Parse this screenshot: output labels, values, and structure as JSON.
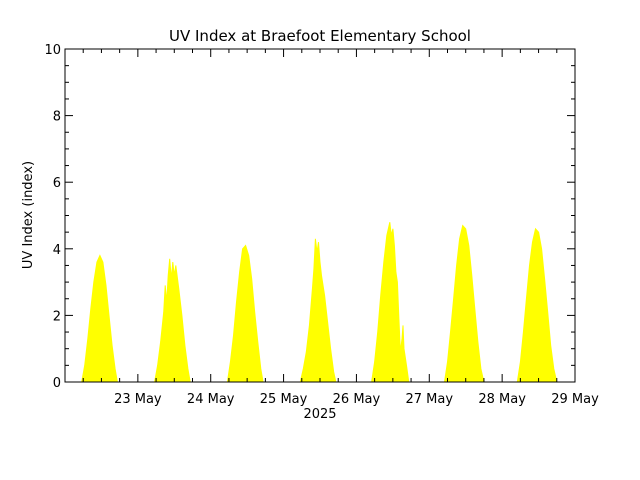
{
  "chart_data": {
    "type": "area",
    "title": "UV Index at Braefoot Elementary School",
    "ylabel": "UV Index (index)",
    "xlabel": "2025",
    "ylim": [
      0,
      10
    ],
    "yticks": [
      "0",
      "2",
      "4",
      "6",
      "8",
      "10"
    ],
    "xlim": [
      "2025-05-22T00:00",
      "2025-05-29T00:00"
    ],
    "xticks": [
      {
        "date": "2025-05-23",
        "label": "23 May"
      },
      {
        "date": "2025-05-24",
        "label": "24 May"
      },
      {
        "date": "2025-05-25",
        "label": "25 May"
      },
      {
        "date": "2025-05-26",
        "label": "26 May"
      },
      {
        "date": "2025-05-27",
        "label": "27 May"
      },
      {
        "date": "2025-05-28",
        "label": "28 May"
      },
      {
        "date": "2025-05-29",
        "label": "29 May"
      }
    ],
    "fill_color": "#ffff00",
    "series": [
      {
        "values": [
          [
            "2025-05-22T05:30",
            0.0
          ],
          [
            "2025-05-22T06:30",
            0.5
          ],
          [
            "2025-05-22T07:30",
            1.3
          ],
          [
            "2025-05-22T08:30",
            2.2
          ],
          [
            "2025-05-22T09:30",
            3.0
          ],
          [
            "2025-05-22T10:30",
            3.6
          ],
          [
            "2025-05-22T11:30",
            3.8
          ],
          [
            "2025-05-22T12:30",
            3.6
          ],
          [
            "2025-05-22T13:30",
            2.9
          ],
          [
            "2025-05-22T14:30",
            2.0
          ],
          [
            "2025-05-22T15:30",
            1.1
          ],
          [
            "2025-05-22T16:30",
            0.4
          ],
          [
            "2025-05-22T17:15",
            0.0
          ],
          [
            "2025-05-23T05:30",
            0.0
          ],
          [
            "2025-05-23T06:30",
            0.5
          ],
          [
            "2025-05-23T07:30",
            1.2
          ],
          [
            "2025-05-23T08:30",
            2.1
          ],
          [
            "2025-05-23T09:00",
            2.9
          ],
          [
            "2025-05-23T09:30",
            2.4
          ],
          [
            "2025-05-23T10:00",
            3.2
          ],
          [
            "2025-05-23T10:30",
            3.7
          ],
          [
            "2025-05-23T11:00",
            3.1
          ],
          [
            "2025-05-23T11:30",
            3.6
          ],
          [
            "2025-05-23T12:00",
            3.2
          ],
          [
            "2025-05-23T12:30",
            3.5
          ],
          [
            "2025-05-23T13:30",
            2.8
          ],
          [
            "2025-05-23T14:30",
            2.0
          ],
          [
            "2025-05-23T15:30",
            1.1
          ],
          [
            "2025-05-23T16:30",
            0.4
          ],
          [
            "2025-05-23T17:15",
            0.0
          ],
          [
            "2025-05-24T05:30",
            0.0
          ],
          [
            "2025-05-24T06:30",
            0.6
          ],
          [
            "2025-05-24T07:30",
            1.4
          ],
          [
            "2025-05-24T08:30",
            2.4
          ],
          [
            "2025-05-24T09:30",
            3.3
          ],
          [
            "2025-05-24T10:30",
            4.0
          ],
          [
            "2025-05-24T11:30",
            4.1
          ],
          [
            "2025-05-24T12:30",
            3.8
          ],
          [
            "2025-05-24T13:30",
            3.1
          ],
          [
            "2025-05-24T14:30",
            2.1
          ],
          [
            "2025-05-24T15:30",
            1.2
          ],
          [
            "2025-05-24T16:30",
            0.4
          ],
          [
            "2025-05-24T17:15",
            0.0
          ],
          [
            "2025-05-25T05:30",
            0.0
          ],
          [
            "2025-05-25T06:30",
            0.4
          ],
          [
            "2025-05-25T07:30",
            0.9
          ],
          [
            "2025-05-25T08:30",
            1.7
          ],
          [
            "2025-05-25T09:30",
            2.8
          ],
          [
            "2025-05-25T10:00",
            3.4
          ],
          [
            "2025-05-25T10:30",
            4.3
          ],
          [
            "2025-05-25T11:00",
            3.9
          ],
          [
            "2025-05-25T11:30",
            4.2
          ],
          [
            "2025-05-25T12:00",
            3.6
          ],
          [
            "2025-05-25T12:30",
            3.2
          ],
          [
            "2025-05-25T13:30",
            2.6
          ],
          [
            "2025-05-25T14:30",
            1.8
          ],
          [
            "2025-05-25T15:30",
            1.0
          ],
          [
            "2025-05-25T16:30",
            0.3
          ],
          [
            "2025-05-25T17:15",
            0.0
          ],
          [
            "2025-05-26T05:00",
            0.0
          ],
          [
            "2025-05-26T06:00",
            0.6
          ],
          [
            "2025-05-26T07:00",
            1.5
          ],
          [
            "2025-05-26T08:00",
            2.6
          ],
          [
            "2025-05-26T09:00",
            3.6
          ],
          [
            "2025-05-26T10:00",
            4.4
          ],
          [
            "2025-05-26T11:00",
            4.8
          ],
          [
            "2025-05-26T11:30",
            4.4
          ],
          [
            "2025-05-26T12:00",
            4.6
          ],
          [
            "2025-05-26T12:30",
            4.1
          ],
          [
            "2025-05-26T13:00",
            3.3
          ],
          [
            "2025-05-26T13:30",
            3.0
          ],
          [
            "2025-05-26T14:00",
            1.9
          ],
          [
            "2025-05-26T14:30",
            0.9
          ],
          [
            "2025-05-26T15:00",
            1.3
          ],
          [
            "2025-05-26T15:20",
            1.7
          ],
          [
            "2025-05-26T15:40",
            1.0
          ],
          [
            "2025-05-26T16:30",
            0.5
          ],
          [
            "2025-05-26T17:15",
            0.0
          ],
          [
            "2025-05-27T05:00",
            0.0
          ],
          [
            "2025-05-27T06:00",
            0.6
          ],
          [
            "2025-05-27T07:00",
            1.5
          ],
          [
            "2025-05-27T08:00",
            2.5
          ],
          [
            "2025-05-27T09:00",
            3.5
          ],
          [
            "2025-05-27T10:00",
            4.3
          ],
          [
            "2025-05-27T11:00",
            4.7
          ],
          [
            "2025-05-27T12:00",
            4.6
          ],
          [
            "2025-05-27T13:00",
            4.1
          ],
          [
            "2025-05-27T14:00",
            3.2
          ],
          [
            "2025-05-27T15:00",
            2.2
          ],
          [
            "2025-05-27T16:00",
            1.2
          ],
          [
            "2025-05-27T17:00",
            0.4
          ],
          [
            "2025-05-27T18:00",
            0.0
          ],
          [
            "2025-05-28T05:00",
            0.0
          ],
          [
            "2025-05-28T06:00",
            0.6
          ],
          [
            "2025-05-28T07:00",
            1.5
          ],
          [
            "2025-05-28T08:00",
            2.5
          ],
          [
            "2025-05-28T09:00",
            3.5
          ],
          [
            "2025-05-28T10:00",
            4.2
          ],
          [
            "2025-05-28T11:00",
            4.6
          ],
          [
            "2025-05-28T12:00",
            4.5
          ],
          [
            "2025-05-28T13:00",
            4.0
          ],
          [
            "2025-05-28T14:00",
            3.1
          ],
          [
            "2025-05-28T15:00",
            2.1
          ],
          [
            "2025-05-28T16:00",
            1.1
          ],
          [
            "2025-05-28T17:00",
            0.4
          ],
          [
            "2025-05-28T18:00",
            0.0
          ]
        ]
      }
    ]
  }
}
